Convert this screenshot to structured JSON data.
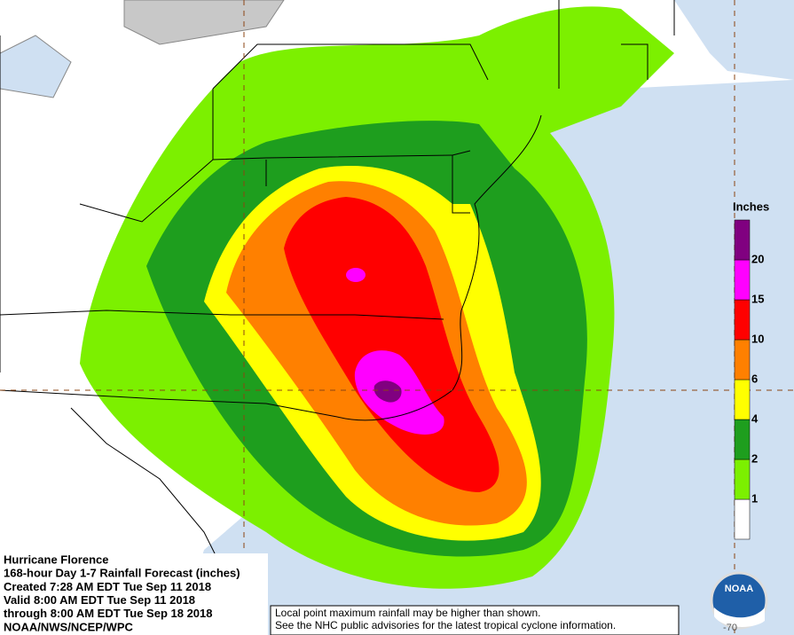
{
  "legend": {
    "title": "Inches",
    "levels": [
      1,
      2,
      4,
      6,
      10,
      15,
      20
    ],
    "colors": [
      "#ffffff",
      "#7cf000",
      "#1e9e1e",
      "#ffff00",
      "#ff8000",
      "#ff0000",
      "#ff00ff",
      "#800080"
    ]
  },
  "info": {
    "lines": [
      "Hurricane Florence",
      "168-hour Day 1-7 Rainfall Forecast (inches)",
      "Created 7:28 AM EDT Tue Sep 11 2018",
      "Valid 8:00 AM EDT Tue Sep 11 2018",
      "through 8:00 AM EDT Tue Sep 18 2018",
      "NOAA/NWS/NCEP/WPC"
    ]
  },
  "disclaimer": {
    "lines": [
      "Local point maximum rainfall may be higher than shown.",
      "See the NHC public advisories for the latest tropical cyclone information."
    ]
  },
  "logo": "NOAA",
  "longitude_label": "-70"
}
